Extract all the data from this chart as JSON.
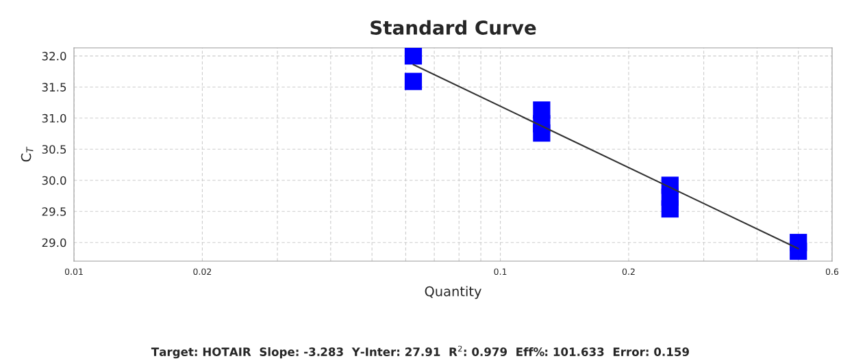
{
  "chart_data": {
    "type": "scatter",
    "title": "Standard Curve",
    "xlabel": "Quantity",
    "ylabel": "C$_{T}$",
    "log": "x",
    "series": [
      {
        "color": "#0000ff",
        "marker": "square",
        "x": [
          0.0625,
          0.0625,
          0.125,
          0.125,
          0.125,
          0.25,
          0.25,
          0.25,
          0.5,
          0.5
        ],
        "values": [
          32.0,
          31.59,
          31.13,
          30.91,
          30.76,
          29.92,
          29.73,
          29.54,
          29.0,
          28.86
        ]
      },
      {
        "type": "line",
        "color": "#333333",
        "marker": "none",
        "line_style": "solid",
        "x": [
          0.0625,
          0.5
        ],
        "values": [
          31.86,
          28.9
        ]
      }
    ],
    "xlim": [
      0.01,
      0.6
    ],
    "xticks": [
      0.01,
      0.02,
      {
        "value": 0.03,
        "label": null
      },
      {
        "value": 0.04,
        "label": null
      },
      {
        "value": 0.05,
        "label": null
      },
      {
        "value": 0.06,
        "label": null
      },
      {
        "value": 0.07,
        "label": null
      },
      {
        "value": 0.08,
        "label": null
      },
      {
        "value": 0.09,
        "label": null
      },
      0.1,
      0.2,
      {
        "value": 0.3,
        "label": null
      },
      {
        "value": 0.4,
        "label": null
      },
      {
        "value": 0.5,
        "label": null
      },
      0.6
    ],
    "ylim": [
      28.7,
      32.13
    ],
    "yticks": [
      {
        "value": 29.0,
        "label": "29.0"
      },
      {
        "value": 29.5,
        "label": "29.5"
      },
      {
        "value": 30.0,
        "label": "30.0"
      },
      {
        "value": 30.5,
        "label": "30.5"
      },
      {
        "value": 31.0,
        "label": "31.0"
      },
      {
        "value": 31.5,
        "label": "31.5"
      },
      {
        "value": 32.0,
        "label": "32.0"
      }
    ],
    "grid": true,
    "legend": false,
    "annotations": [
      "Target: HOTAIR  Slope: -3.283  Y-Inter: 27.91  R$^{2}$: 0.979  Eff%: 101.633  Error: 0.159"
    ]
  }
}
